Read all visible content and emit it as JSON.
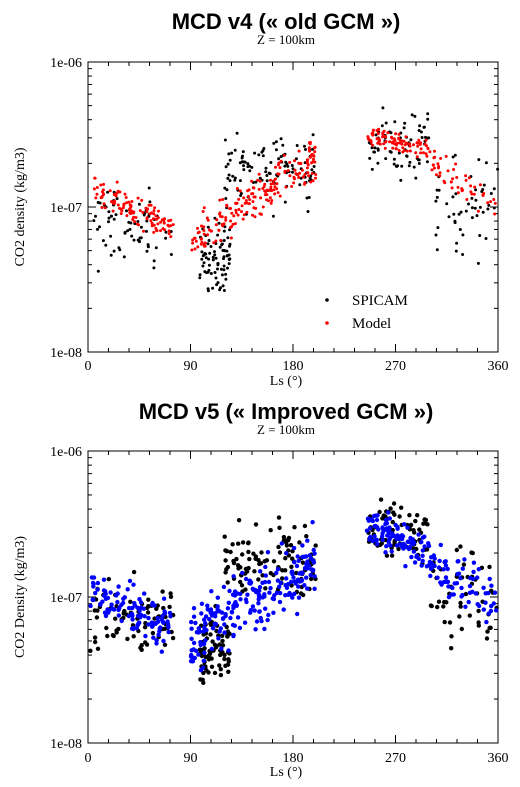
{
  "colors": {
    "spicam": "#000000",
    "model_v4": "#ff0000",
    "model_v5": "#0000ff",
    "axis": "#000000"
  },
  "chart_data": [
    {
      "type": "scatter",
      "title": "MCD v4 (« old GCM »)",
      "subtitle": "Z = 100km",
      "xlabel": "Ls (°)",
      "ylabel": "CO2 density (kg/m3)",
      "xlim": [
        0,
        360
      ],
      "ylim": [
        1e-08,
        1e-06
      ],
      "yscale": "log",
      "xticks": [
        0,
        90,
        180,
        270,
        360
      ],
      "xtick_labels": [
        "0",
        "90",
        "180",
        "270",
        "360"
      ],
      "yticks": [
        1e-08,
        1e-07,
        1e-06
      ],
      "ytick_labels": [
        "1e-08",
        "1e-07",
        "1e-06"
      ],
      "grid": false,
      "legend_position": "bottom-center",
      "legend": [
        "SPICAM",
        "Model"
      ],
      "series": [
        {
          "name": "SPICAM",
          "color": "#000000",
          "segments": [
            {
              "x": [
                2,
                75
              ],
              "y": [
                3e-08,
                2.1e-07
              ],
              "n": 70,
              "yc": 7e-08
            },
            {
              "x": [
                98,
                125
              ],
              "y": [
                2e-08,
                1.1e-07
              ],
              "n": 80,
              "yc": 4.5e-08
            },
            {
              "x": [
                120,
                200
              ],
              "y": [
                7e-08,
                4.8e-07
              ],
              "n": 110,
              "yc": 1.8e-07
            },
            {
              "x": [
                245,
                300
              ],
              "y": [
                1.1e-07,
                5.2e-07
              ],
              "n": 70,
              "yc": 2.8e-07
            },
            {
              "x": [
                300,
                360
              ],
              "y": [
                4e-08,
                6.2e-07
              ],
              "n": 50,
              "yc": 1e-07
            }
          ]
        },
        {
          "name": "Model",
          "color": "#ff0000",
          "segments": [
            {
              "x": [
                5,
                75
              ],
              "y": [
                6e-08,
                1.8e-07
              ],
              "n": 110,
              "yc": 1.1e-07,
              "trend": [
                1.35e-07,
                7e-08
              ]
            },
            {
              "x": [
                90,
                200
              ],
              "y": [
                5e-08,
                2.8e-07
              ],
              "n": 200,
              "yc": 1e-07,
              "trend": [
                5.5e-08,
                2.2e-07
              ]
            },
            {
              "x": [
                245,
                300
              ],
              "y": [
                1.8e-07,
                4e-07
              ],
              "n": 90,
              "yc": 2.8e-07,
              "trend": [
                3.2e-07,
                2.4e-07
              ]
            },
            {
              "x": [
                300,
                360
              ],
              "y": [
                8e-08,
                2.8e-07
              ],
              "n": 50,
              "yc": 1.5e-07,
              "trend": [
                2e-07,
                1e-07
              ]
            }
          ]
        }
      ]
    },
    {
      "type": "scatter",
      "title": "MCD v5 (« Improved GCM »)",
      "subtitle": "Z = 100km",
      "xlabel": "Ls (°)",
      "ylabel": "CO2 Density (kg/m3)",
      "xlim": [
        0,
        360
      ],
      "ylim": [
        1e-08,
        1e-06
      ],
      "yscale": "log",
      "xticks": [
        0,
        90,
        180,
        270,
        360
      ],
      "xtick_labels": [
        "0",
        "90",
        "180",
        "270",
        "360"
      ],
      "yticks": [
        1e-08,
        1e-07,
        1e-06
      ],
      "ytick_labels": [
        "1e-08",
        "1e-07",
        "1e-06"
      ],
      "grid": false,
      "series": [
        {
          "name": "SPICAM",
          "color": "#000000",
          "segments": [
            {
              "x": [
                2,
                75
              ],
              "y": [
                3e-08,
                2e-07
              ],
              "n": 75,
              "yc": 7e-08
            },
            {
              "x": [
                98,
                125
              ],
              "y": [
                2e-08,
                1.1e-07
              ],
              "n": 80,
              "yc": 4.5e-08
            },
            {
              "x": [
                120,
                200
              ],
              "y": [
                7e-08,
                4.8e-07
              ],
              "n": 110,
              "yc": 1.8e-07
            },
            {
              "x": [
                245,
                300
              ],
              "y": [
                1.1e-07,
                5.2e-07
              ],
              "n": 70,
              "yc": 2.8e-07
            },
            {
              "x": [
                300,
                360
              ],
              "y": [
                4e-08,
                6.2e-07
              ],
              "n": 50,
              "yc": 1e-07
            }
          ]
        },
        {
          "name": "Model",
          "color": "#0000ff",
          "segments": [
            {
              "x": [
                2,
                75
              ],
              "y": [
                2.5e-08,
                1.5e-07
              ],
              "n": 110,
              "yc": 8e-08,
              "trend": [
                1.1e-07,
                6e-08
              ]
            },
            {
              "x": [
                90,
                200
              ],
              "y": [
                3e-08,
                3.5e-07
              ],
              "n": 220,
              "yc": 1e-07,
              "trend": [
                5e-08,
                1.8e-07
              ]
            },
            {
              "x": [
                245,
                300
              ],
              "y": [
                1.2e-07,
                5e-07
              ],
              "n": 100,
              "yc": 2.8e-07,
              "trend": [
                3.2e-07,
                2e-07
              ]
            },
            {
              "x": [
                300,
                360
              ],
              "y": [
                5e-08,
                3e-07
              ],
              "n": 70,
              "yc": 1.2e-07,
              "trend": [
                1.8e-07,
                9e-08
              ]
            }
          ]
        }
      ]
    }
  ]
}
